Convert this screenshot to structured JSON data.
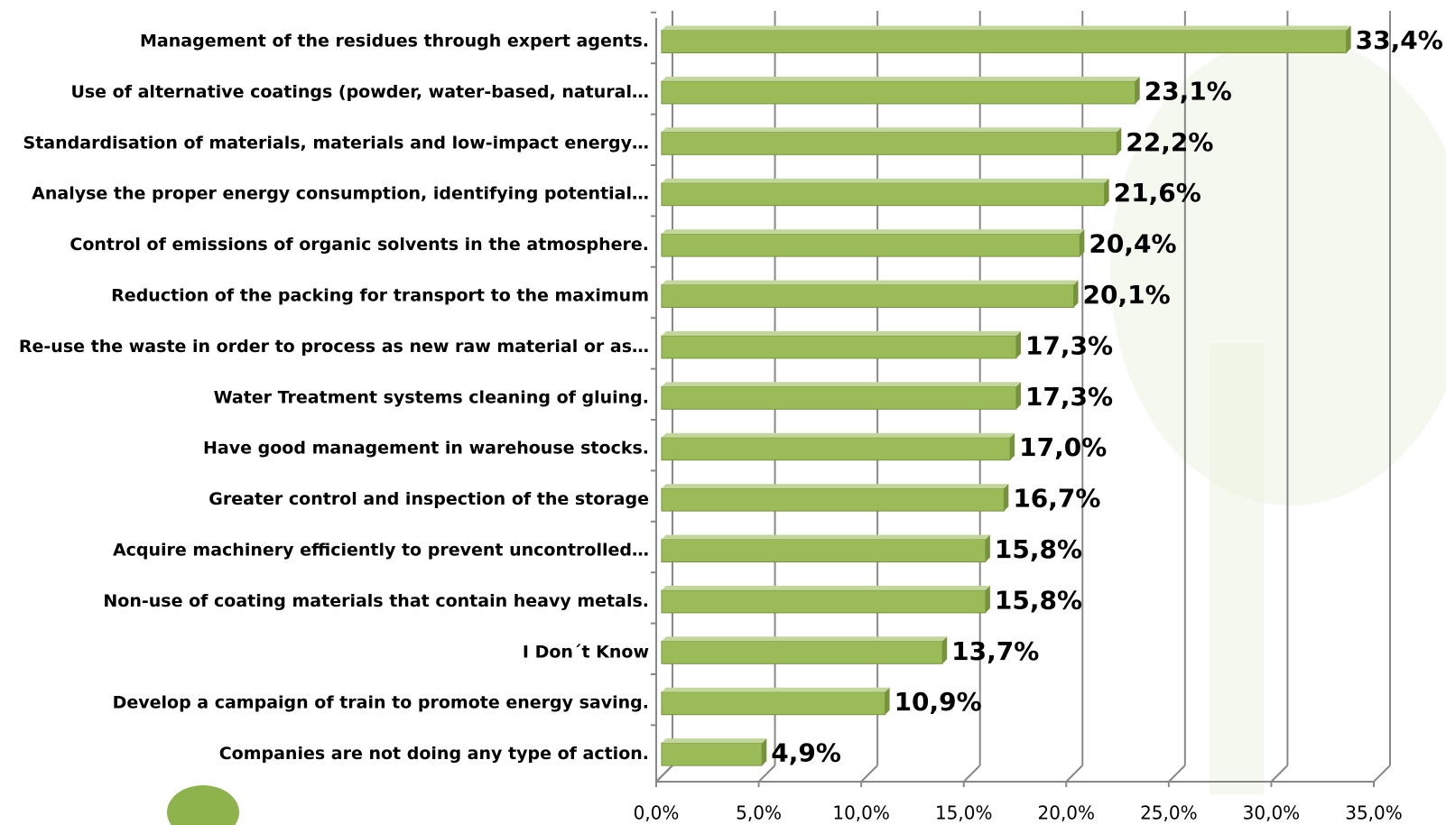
{
  "chart_data": {
    "type": "barh",
    "categories": [
      "Management of the residues through expert agents.",
      "Use of alternative coatings (powder, water-based, natural…",
      "Standardisation of materials, materials and low-impact energy…",
      "Analyse the proper energy consumption, identifying potential…",
      "Control of emissions of organic solvents in the atmosphere.",
      "Reduction of the packing for transport to the maximum",
      "Re-use the waste in order to process as new raw material or as…",
      "Water Treatment systems cleaning of gluing.",
      "Have good management in warehouse stocks.",
      "Greater control and inspection of the storage",
      "Acquire machinery efficiently to prevent uncontrolled…",
      "Non-use of coating materials that contain heavy metals.",
      "I Don´t Know",
      "Develop a campaign of train to promote energy saving.",
      "Companies are not doing any type of action."
    ],
    "values": [
      33.4,
      23.1,
      22.2,
      21.6,
      20.4,
      20.1,
      17.3,
      17.3,
      17.0,
      16.7,
      15.8,
      15.8,
      13.7,
      10.9,
      4.9
    ],
    "value_labels": [
      "33,4%",
      "23,1%",
      "22,2%",
      "21,6%",
      "20,4%",
      "20,1%",
      "17,3%",
      "17,3%",
      "17,0%",
      "16,7%",
      "15,8%",
      "15,8%",
      "13,7%",
      "10,9%",
      "4,9%"
    ],
    "color": "#9bbb59",
    "xlim": [
      0,
      35
    ],
    "xticks": [
      {
        "value": 0,
        "label": "0,0%"
      },
      {
        "value": 5,
        "label": "5,0%"
      },
      {
        "value": 10,
        "label": "10,0%"
      },
      {
        "value": 15,
        "label": "15,0%"
      },
      {
        "value": 20,
        "label": "20,0%"
      },
      {
        "value": 25,
        "label": "25,0%"
      },
      {
        "value": 30,
        "label": "30,0%"
      },
      {
        "value": 35,
        "label": "35,0%"
      }
    ],
    "grid": true
  }
}
